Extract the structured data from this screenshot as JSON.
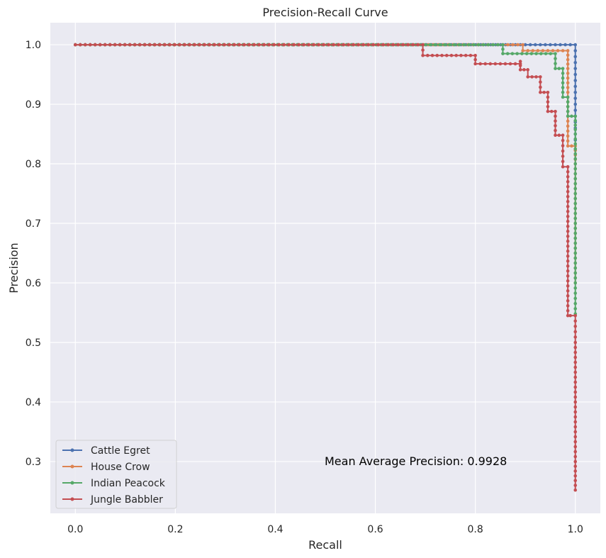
{
  "chart_data": {
    "type": "line",
    "title": "Precision-Recall Curve",
    "xlabel": "Recall",
    "ylabel": "Precision",
    "xlim": [
      -0.05,
      1.05
    ],
    "ylim": [
      0.213,
      1.037
    ],
    "x_ticks": [
      0.0,
      0.2,
      0.4,
      0.6,
      0.8,
      1.0
    ],
    "x_tick_labels": [
      "0.0",
      "0.2",
      "0.4",
      "0.6",
      "0.8",
      "1.0"
    ],
    "y_ticks": [
      0.3,
      0.4,
      0.5,
      0.6,
      0.7,
      0.8,
      0.9,
      1.0
    ],
    "y_tick_labels": [
      "0.3",
      "0.4",
      "0.5",
      "0.6",
      "0.7",
      "0.8",
      "0.9",
      "1.0"
    ],
    "grid": true,
    "legend_position": "lower-left",
    "annotation": "Mean Average Precision: 0.9928",
    "series": [
      {
        "name": "Cattle Egret",
        "color": "#4c72b0",
        "points": [
          [
            0.0,
            1.0
          ],
          [
            0.9,
            1.0
          ],
          [
            1.0,
            1.0
          ],
          [
            1.0,
            0.98
          ],
          [
            1.0,
            0.96
          ],
          [
            1.0,
            0.94
          ],
          [
            1.0,
            0.92
          ],
          [
            1.0,
            0.9
          ],
          [
            1.0,
            0.88
          ],
          [
            1.0,
            0.86
          ],
          [
            1.0,
            0.84
          ]
        ]
      },
      {
        "name": "House Crow",
        "color": "#dd8452",
        "points": [
          [
            0.0,
            1.0
          ],
          [
            0.855,
            1.0
          ],
          [
            0.895,
            1.0
          ],
          [
            0.895,
            0.99
          ],
          [
            0.985,
            0.99
          ],
          [
            0.985,
            0.96
          ],
          [
            0.985,
            0.92
          ],
          [
            0.985,
            0.88
          ],
          [
            0.985,
            0.83
          ],
          [
            1.0,
            0.83
          ],
          [
            1.0,
            0.8
          ],
          [
            1.0,
            0.75
          ],
          [
            1.0,
            0.7
          ],
          [
            1.0,
            0.65
          ],
          [
            1.0,
            0.6
          ]
        ]
      },
      {
        "name": "Indian Peacock",
        "color": "#55a868",
        "points": [
          [
            0.0,
            1.0
          ],
          [
            0.7,
            1.0
          ],
          [
            0.855,
            1.0
          ],
          [
            0.855,
            0.985
          ],
          [
            0.96,
            0.985
          ],
          [
            0.96,
            0.96
          ],
          [
            0.975,
            0.96
          ],
          [
            0.975,
            0.912
          ],
          [
            0.985,
            0.912
          ],
          [
            0.985,
            0.88
          ],
          [
            1.0,
            0.88
          ],
          [
            1.0,
            0.85
          ],
          [
            1.0,
            0.8
          ],
          [
            1.0,
            0.75
          ],
          [
            1.0,
            0.7
          ],
          [
            1.0,
            0.65
          ],
          [
            1.0,
            0.6
          ],
          [
            1.0,
            0.548
          ]
        ]
      },
      {
        "name": "Jungle Babbler",
        "color": "#c44e52",
        "points": [
          [
            0.0,
            1.0
          ],
          [
            0.695,
            1.0
          ],
          [
            0.695,
            0.982
          ],
          [
            0.8,
            0.982
          ],
          [
            0.8,
            0.968
          ],
          [
            0.89,
            0.968
          ],
          [
            0.89,
            0.972
          ],
          [
            0.89,
            0.958
          ],
          [
            0.905,
            0.958
          ],
          [
            0.905,
            0.946
          ],
          [
            0.93,
            0.946
          ],
          [
            0.93,
            0.92
          ],
          [
            0.945,
            0.92
          ],
          [
            0.945,
            0.888
          ],
          [
            0.96,
            0.888
          ],
          [
            0.96,
            0.848
          ],
          [
            0.975,
            0.848
          ],
          [
            0.975,
            0.795
          ],
          [
            0.985,
            0.795
          ],
          [
            0.985,
            0.545
          ],
          [
            0.99,
            0.545
          ],
          [
            1.0,
            0.545
          ],
          [
            1.0,
            0.5
          ],
          [
            1.0,
            0.45
          ],
          [
            1.0,
            0.4
          ],
          [
            1.0,
            0.35
          ],
          [
            1.0,
            0.3
          ],
          [
            1.0,
            0.252
          ]
        ]
      }
    ]
  }
}
